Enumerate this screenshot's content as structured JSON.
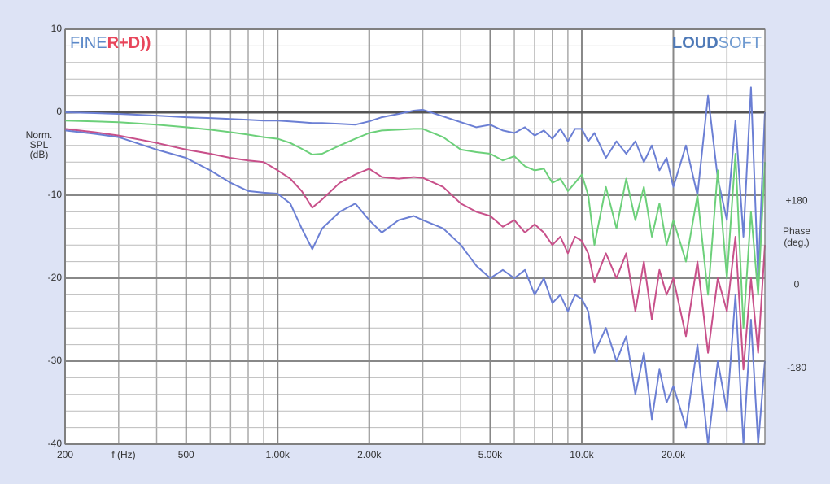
{
  "chart_data": {
    "type": "line",
    "xscale": "log",
    "xlim": [
      200,
      40000
    ],
    "ylim": [
      -40,
      10
    ],
    "y2lim": [
      -343,
      550
    ],
    "xticks": [
      200,
      500,
      {
        "value": 1000,
        "label": "1.00k"
      },
      {
        "value": 2000,
        "label": "2.00k"
      },
      {
        "value": 5000,
        "label": "5.00k"
      },
      {
        "value": 10000,
        "label": "10.0k"
      },
      {
        "value": 20000,
        "label": "20.0k"
      }
    ],
    "xminor": [
      300,
      400,
      600,
      700,
      800,
      900,
      3000,
      4000,
      6000,
      7000,
      8000,
      9000,
      30000,
      40000
    ],
    "yticks": [
      10,
      0,
      -10,
      -20,
      -30,
      -40
    ],
    "yminor": [
      8,
      6,
      4,
      2,
      -2,
      -4,
      -6,
      -8,
      -12,
      -14,
      -16,
      -18,
      -22,
      -24,
      -26,
      -28,
      -32,
      -34,
      -36,
      -38
    ],
    "y2ticks": [
      {
        "value": 180,
        "label": "+180"
      },
      0,
      -180
    ],
    "xlabel": "f (Hz)",
    "ylabel": [
      "Norm.",
      "SPL",
      "(dB)"
    ],
    "y2label": [
      "Phase",
      "(deg.)"
    ],
    "grid": true,
    "logo_left": [
      "FINE",
      "R+D))"
    ],
    "logo_right": [
      "LOUD",
      "SOFT"
    ],
    "x": [
      200,
      250,
      300,
      400,
      500,
      600,
      700,
      800,
      900,
      1000,
      1100,
      1200,
      1300,
      1400,
      1600,
      1800,
      2000,
      2200,
      2500,
      2800,
      3000,
      3500,
      4000,
      4500,
      5000,
      5500,
      6000,
      6500,
      7000,
      7500,
      8000,
      8500,
      9000,
      9500,
      10000,
      10500,
      11000,
      12000,
      13000,
      14000,
      15000,
      16000,
      17000,
      18000,
      19000,
      20000,
      22000,
      24000,
      26000,
      28000,
      30000,
      32000,
      34000,
      36000,
      38000,
      40000
    ],
    "series": [
      {
        "color": "#6b7fd4",
        "values": [
          0,
          -0.1,
          -0.2,
          -0.4,
          -0.6,
          -0.7,
          -0.8,
          -0.9,
          -1,
          -1,
          -1.1,
          -1.2,
          -1.3,
          -1.3,
          -1.4,
          -1.5,
          -1.1,
          -0.6,
          -0.2,
          0.2,
          0.3,
          -0.5,
          -1.2,
          -1.8,
          -1.5,
          -2.2,
          -2.5,
          -1.8,
          -2.8,
          -2.2,
          -3.2,
          -2,
          -3.5,
          -2,
          -2,
          -3.5,
          -2.5,
          -5.5,
          -3.5,
          -5,
          -3.5,
          -6,
          -4,
          -7,
          -5.5,
          -9,
          -4,
          -10,
          2,
          -8,
          -13,
          -1,
          -15,
          3,
          -20,
          0
        ]
      },
      {
        "color": "#6cd07a",
        "values": [
          -1,
          -1.1,
          -1.2,
          -1.5,
          -1.8,
          -2.1,
          -2.4,
          -2.7,
          -3,
          -3.2,
          -3.7,
          -4.4,
          -5.1,
          -5,
          -4,
          -3.2,
          -2.5,
          -2.2,
          -2.1,
          -2,
          -2,
          -3,
          -4.5,
          -4.8,
          -5,
          -5.8,
          -5.3,
          -6.5,
          -7,
          -6.8,
          -8.5,
          -8,
          -9.5,
          -8.5,
          -7.5,
          -10,
          -16,
          -9,
          -14,
          -8,
          -13,
          -9,
          -15,
          -11,
          -16,
          -13,
          -18,
          -10,
          -22,
          -7,
          -20,
          -5,
          -26,
          -12,
          -22,
          -6
        ]
      },
      {
        "color": "#c8508a",
        "values": [
          -2,
          -2.4,
          -2.8,
          -3.7,
          -4.5,
          -5,
          -5.5,
          -5.8,
          -6,
          -7,
          -8,
          -9.5,
          -11.5,
          -10.5,
          -8.5,
          -7.5,
          -6.8,
          -7.8,
          -8,
          -7.8,
          -7.9,
          -9,
          -11,
          -12,
          -12.5,
          -13.8,
          -13,
          -14.5,
          -13.5,
          -14.5,
          -16,
          -15,
          -17,
          -15,
          -15.5,
          -17,
          -20.5,
          -17,
          -20,
          -17,
          -24,
          -18,
          -25,
          -19,
          -22,
          -20,
          -27,
          -18,
          -29,
          -20,
          -24,
          -15,
          -31,
          -20,
          -29,
          -16
        ]
      },
      {
        "color": "#6b7fd4",
        "values": [
          -2.2,
          -2.6,
          -3,
          -4.5,
          -5.5,
          -7,
          -8.5,
          -9.5,
          -9.7,
          -9.8,
          -11,
          -14,
          -16.5,
          -14,
          -12,
          -11,
          -13,
          -14.5,
          -13,
          -12.5,
          -13,
          -14,
          -16,
          -18.5,
          -20,
          -19,
          -20,
          -19,
          -22,
          -20,
          -23,
          -22,
          -24,
          -22,
          -22.5,
          -24,
          -29,
          -26,
          -30,
          -27,
          -34,
          -29,
          -37,
          -31,
          -35,
          -33,
          -38,
          -28,
          -40,
          -30,
          -36,
          -22,
          -40,
          -25,
          -40,
          -30
        ]
      }
    ]
  }
}
